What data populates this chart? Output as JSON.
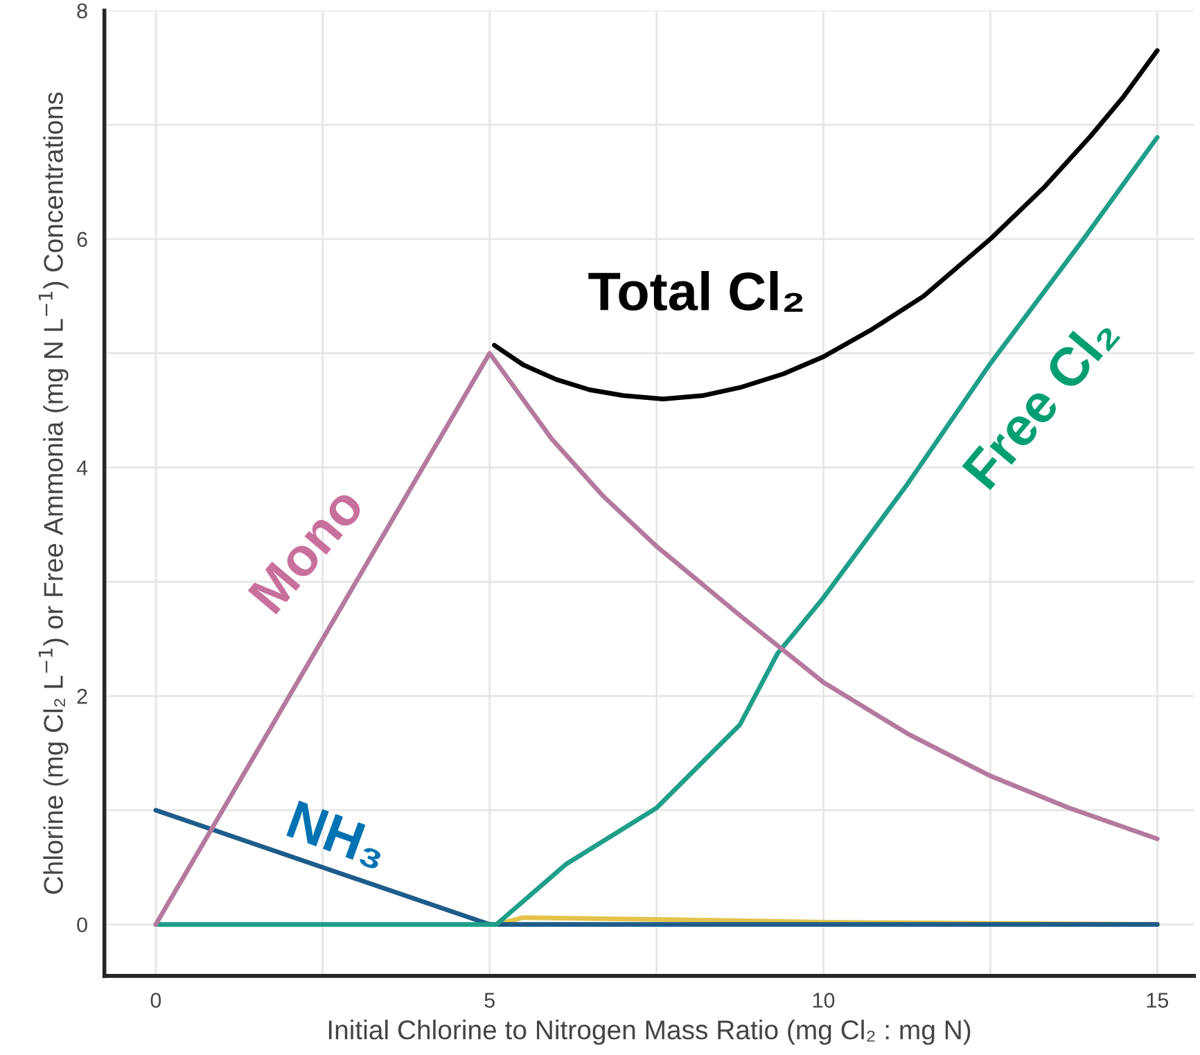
{
  "chart_data": {
    "type": "line",
    "xlabel": "Initial Chlorine to Nitrogen Mass Ratio (mg Cl₂ : mg N)",
    "ylabel": "Chlorine (mg Cl₂ L$^{−1}$) or Free Ammonia (mg N L$^{−1}$) Concentrations",
    "series": [
      {
        "name": "Total Cl₂",
        "color": "#000000",
        "x": [
          5.07,
          5.5,
          6,
          6.5,
          7,
          7.6,
          8.2,
          8.75,
          9.4,
          10,
          10.7,
          11.5,
          12.5,
          13.3,
          14,
          14.5,
          15
        ],
        "values": [
          5.07,
          4.9,
          4.77,
          4.68,
          4.63,
          4.6,
          4.63,
          4.7,
          4.82,
          4.97,
          5.2,
          5.5,
          6.0,
          6.45,
          6.9,
          7.25,
          7.65
        ]
      },
      {
        "name": "Mono",
        "color": "#b47a9e",
        "x": [
          0,
          5,
          5.93,
          6.7,
          7.5,
          8.76,
          10,
          11.26,
          12.5,
          13.68,
          15
        ],
        "values": [
          0,
          5.0,
          4.25,
          3.75,
          3.31,
          2.7,
          2.12,
          1.67,
          1.3,
          1.02,
          0.75
        ]
      },
      {
        "name": "Free Cl₂",
        "color": "#1f9e89",
        "x": [
          0,
          5.1,
          6.15,
          7.5,
          8.75,
          9.31,
          10,
          11.24,
          12.5,
          13.87,
          15
        ],
        "values": [
          0,
          0,
          0.53,
          1.02,
          1.75,
          2.37,
          2.86,
          3.84,
          4.91,
          5.98,
          6.89
        ]
      },
      {
        "name": "NH₃",
        "color": "#1e5c8a",
        "x": [
          0,
          5,
          15
        ],
        "values": [
          1,
          0,
          0
        ]
      },
      {
        "color": "#e3c34a",
        "x": [
          5.1,
          5.5,
          8,
          10,
          12.5,
          15
        ],
        "values": [
          0,
          0.06,
          0.04,
          0.02,
          0.01,
          0
        ]
      }
    ],
    "xlim": [
      -0.77,
      15.55
    ],
    "ylim": [
      -0.45,
      8.0
    ],
    "xticks": [
      0,
      5,
      10,
      15
    ],
    "yticks": [
      0,
      2,
      4,
      6,
      8
    ],
    "grid": true,
    "legend": false,
    "marker": "none",
    "line_style": "solid"
  }
}
